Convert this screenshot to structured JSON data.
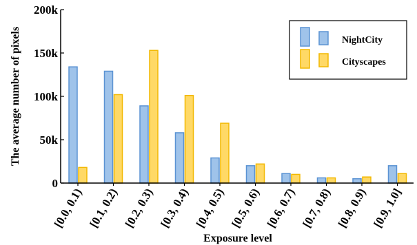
{
  "chart_data": {
    "type": "bar",
    "title": "",
    "xlabel": "Exposure level",
    "ylabel": "The average number of pixels",
    "categories": [
      "[0.0, 0.1)",
      "[0.1, 0.2)",
      "[0.2, 0.3)",
      "[0.3, 0.4)",
      "[0.4, 0.5)",
      "[0.5, 0.6)",
      "[0.6, 0.7)",
      "[0.7, 0.8)",
      "[0.8, 0.9)",
      "[0.9, 1.0]"
    ],
    "series": [
      {
        "name": "NightCity",
        "color": "#9fc3ea",
        "stroke": "#5b93d3",
        "values": [
          134000,
          129000,
          89000,
          58000,
          29000,
          20000,
          11000,
          6000,
          5000,
          20000
        ]
      },
      {
        "name": "Cityscapes",
        "color": "#ffd966",
        "stroke": "#f2b800",
        "values": [
          18000,
          102000,
          153000,
          101000,
          69000,
          22000,
          10000,
          6000,
          7000,
          11000
        ]
      }
    ],
    "ylim": [
      0,
      200000
    ],
    "yticks": [
      0,
      50000,
      100000,
      150000,
      200000
    ],
    "ytick_labels": [
      "0",
      "50k",
      "100k",
      "150k",
      "200k"
    ],
    "legend_position": "top-right",
    "grid": false
  }
}
